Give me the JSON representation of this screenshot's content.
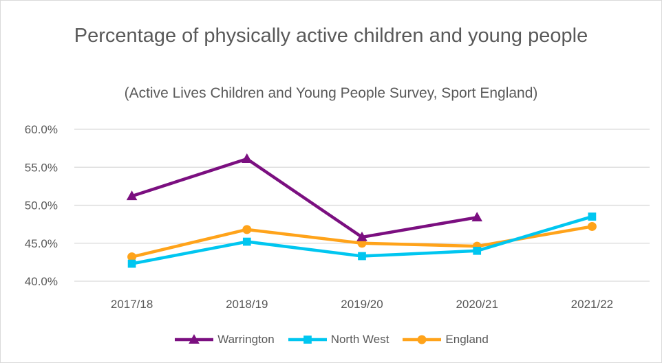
{
  "chart_data": {
    "type": "line",
    "title": "Percentage of physically active children and young people",
    "subtitle": "(Active Lives Children and Young People Survey, Sport England)",
    "categories": [
      "2017/18",
      "2018/19",
      "2019/20",
      "2020/21",
      "2021/22"
    ],
    "ylim": [
      0.4,
      0.6
    ],
    "yticks": [
      0.4,
      0.45,
      0.5,
      0.55,
      0.6
    ],
    "ytick_labels": [
      "40.0%",
      "45.0%",
      "50.0%",
      "55.0%",
      "60.0%"
    ],
    "grid": true,
    "legend_position": "bottom",
    "series": [
      {
        "name": "Warrington",
        "values": [
          0.512,
          0.561,
          0.458,
          0.484,
          null
        ],
        "color": "#7b0f80",
        "marker": "triangle"
      },
      {
        "name": "North West",
        "values": [
          0.423,
          0.452,
          0.433,
          0.44,
          0.485
        ],
        "color": "#00c6f0",
        "marker": "square"
      },
      {
        "name": "England",
        "values": [
          0.432,
          0.468,
          0.45,
          0.446,
          0.472
        ],
        "color": "#ffa31a",
        "marker": "circle"
      }
    ]
  }
}
